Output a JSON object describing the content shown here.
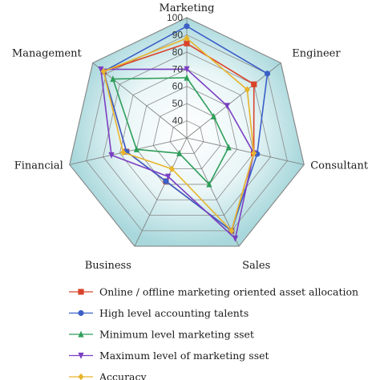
{
  "chart_data": {
    "type": "radar",
    "axes": [
      "Marketing",
      "Engineer",
      "Consultant",
      "Sales",
      "Business",
      "Financial",
      "Management"
    ],
    "rlim": [
      30,
      100
    ],
    "ticks": [
      30,
      40,
      50,
      60,
      70,
      80,
      90,
      100
    ],
    "tick_labels": [
      "",
      "40",
      "50",
      "60",
      "70",
      "80",
      "90",
      "100"
    ],
    "grid": true,
    "legend_position": "bottom",
    "series": [
      {
        "name": "Online / offline marketing oriented asset allocation",
        "color": "#d9432a",
        "marker": "square",
        "values": [
          85,
          80,
          70,
          90,
          58,
          66,
          92
        ]
      },
      {
        "name": "High level accounting talents",
        "color": "#3a5fc7",
        "marker": "circle",
        "values": [
          95,
          90,
          72,
          90,
          58,
          66,
          92
        ]
      },
      {
        "name": "Minimum level marketing sset",
        "color": "#2e9e5a",
        "marker": "triangle-up",
        "values": [
          65,
          50,
          55,
          60,
          40,
          60,
          85
        ]
      },
      {
        "name": "Maximum level of marketing sset",
        "color": "#7a3fc2",
        "marker": "triangle-down",
        "values": [
          70,
          60,
          70,
          95,
          55,
          75,
          94
        ]
      },
      {
        "name": "Accuracy",
        "color": "#e8b42c",
        "marker": "diamond",
        "values": [
          88,
          75,
          70,
          90,
          50,
          68,
          92
        ]
      }
    ]
  }
}
